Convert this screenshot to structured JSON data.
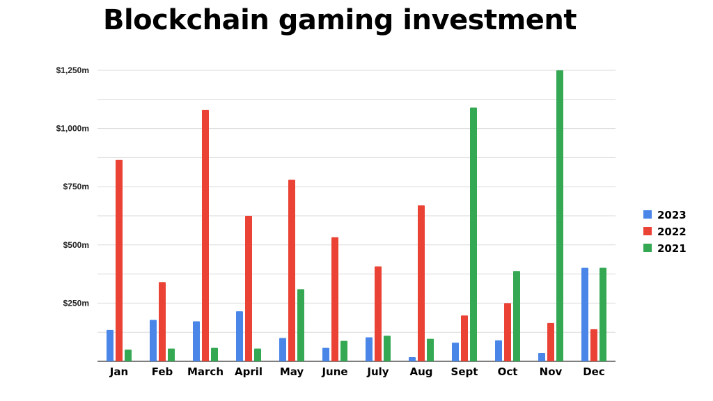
{
  "chart_data": {
    "type": "bar",
    "title": "Blockchain gaming investment",
    "xlabel": "",
    "ylabel": "",
    "categories": [
      "Jan",
      "Feb",
      "March",
      "April",
      "May",
      "June",
      "July",
      "Aug",
      "Sept",
      "Oct",
      "Nov",
      "Dec"
    ],
    "series": [
      {
        "name": "2023",
        "color": "#4a86e8",
        "values": [
          135,
          178,
          172,
          215,
          100,
          58,
          103,
          18,
          80,
          90,
          36,
          402
        ]
      },
      {
        "name": "2022",
        "color": "#ea4335",
        "values": [
          865,
          340,
          1080,
          625,
          780,
          533,
          408,
          670,
          197,
          250,
          165,
          138
        ]
      },
      {
        "name": "2021",
        "color": "#34a853",
        "values": [
          50,
          55,
          58,
          55,
          310,
          88,
          110,
          97,
          1090,
          388,
          1250,
          402
        ]
      }
    ],
    "ylim": [
      0,
      1250
    ],
    "yticks": [
      {
        "value": 250,
        "label": "$250m"
      },
      {
        "value": 500,
        "label": "$500m"
      },
      {
        "value": 750,
        "label": "$750m"
      },
      {
        "value": 1000,
        "label": "$1,000m"
      },
      {
        "value": 1250,
        "label": "$1,250m"
      }
    ],
    "grid": true,
    "legend_position": "right"
  }
}
